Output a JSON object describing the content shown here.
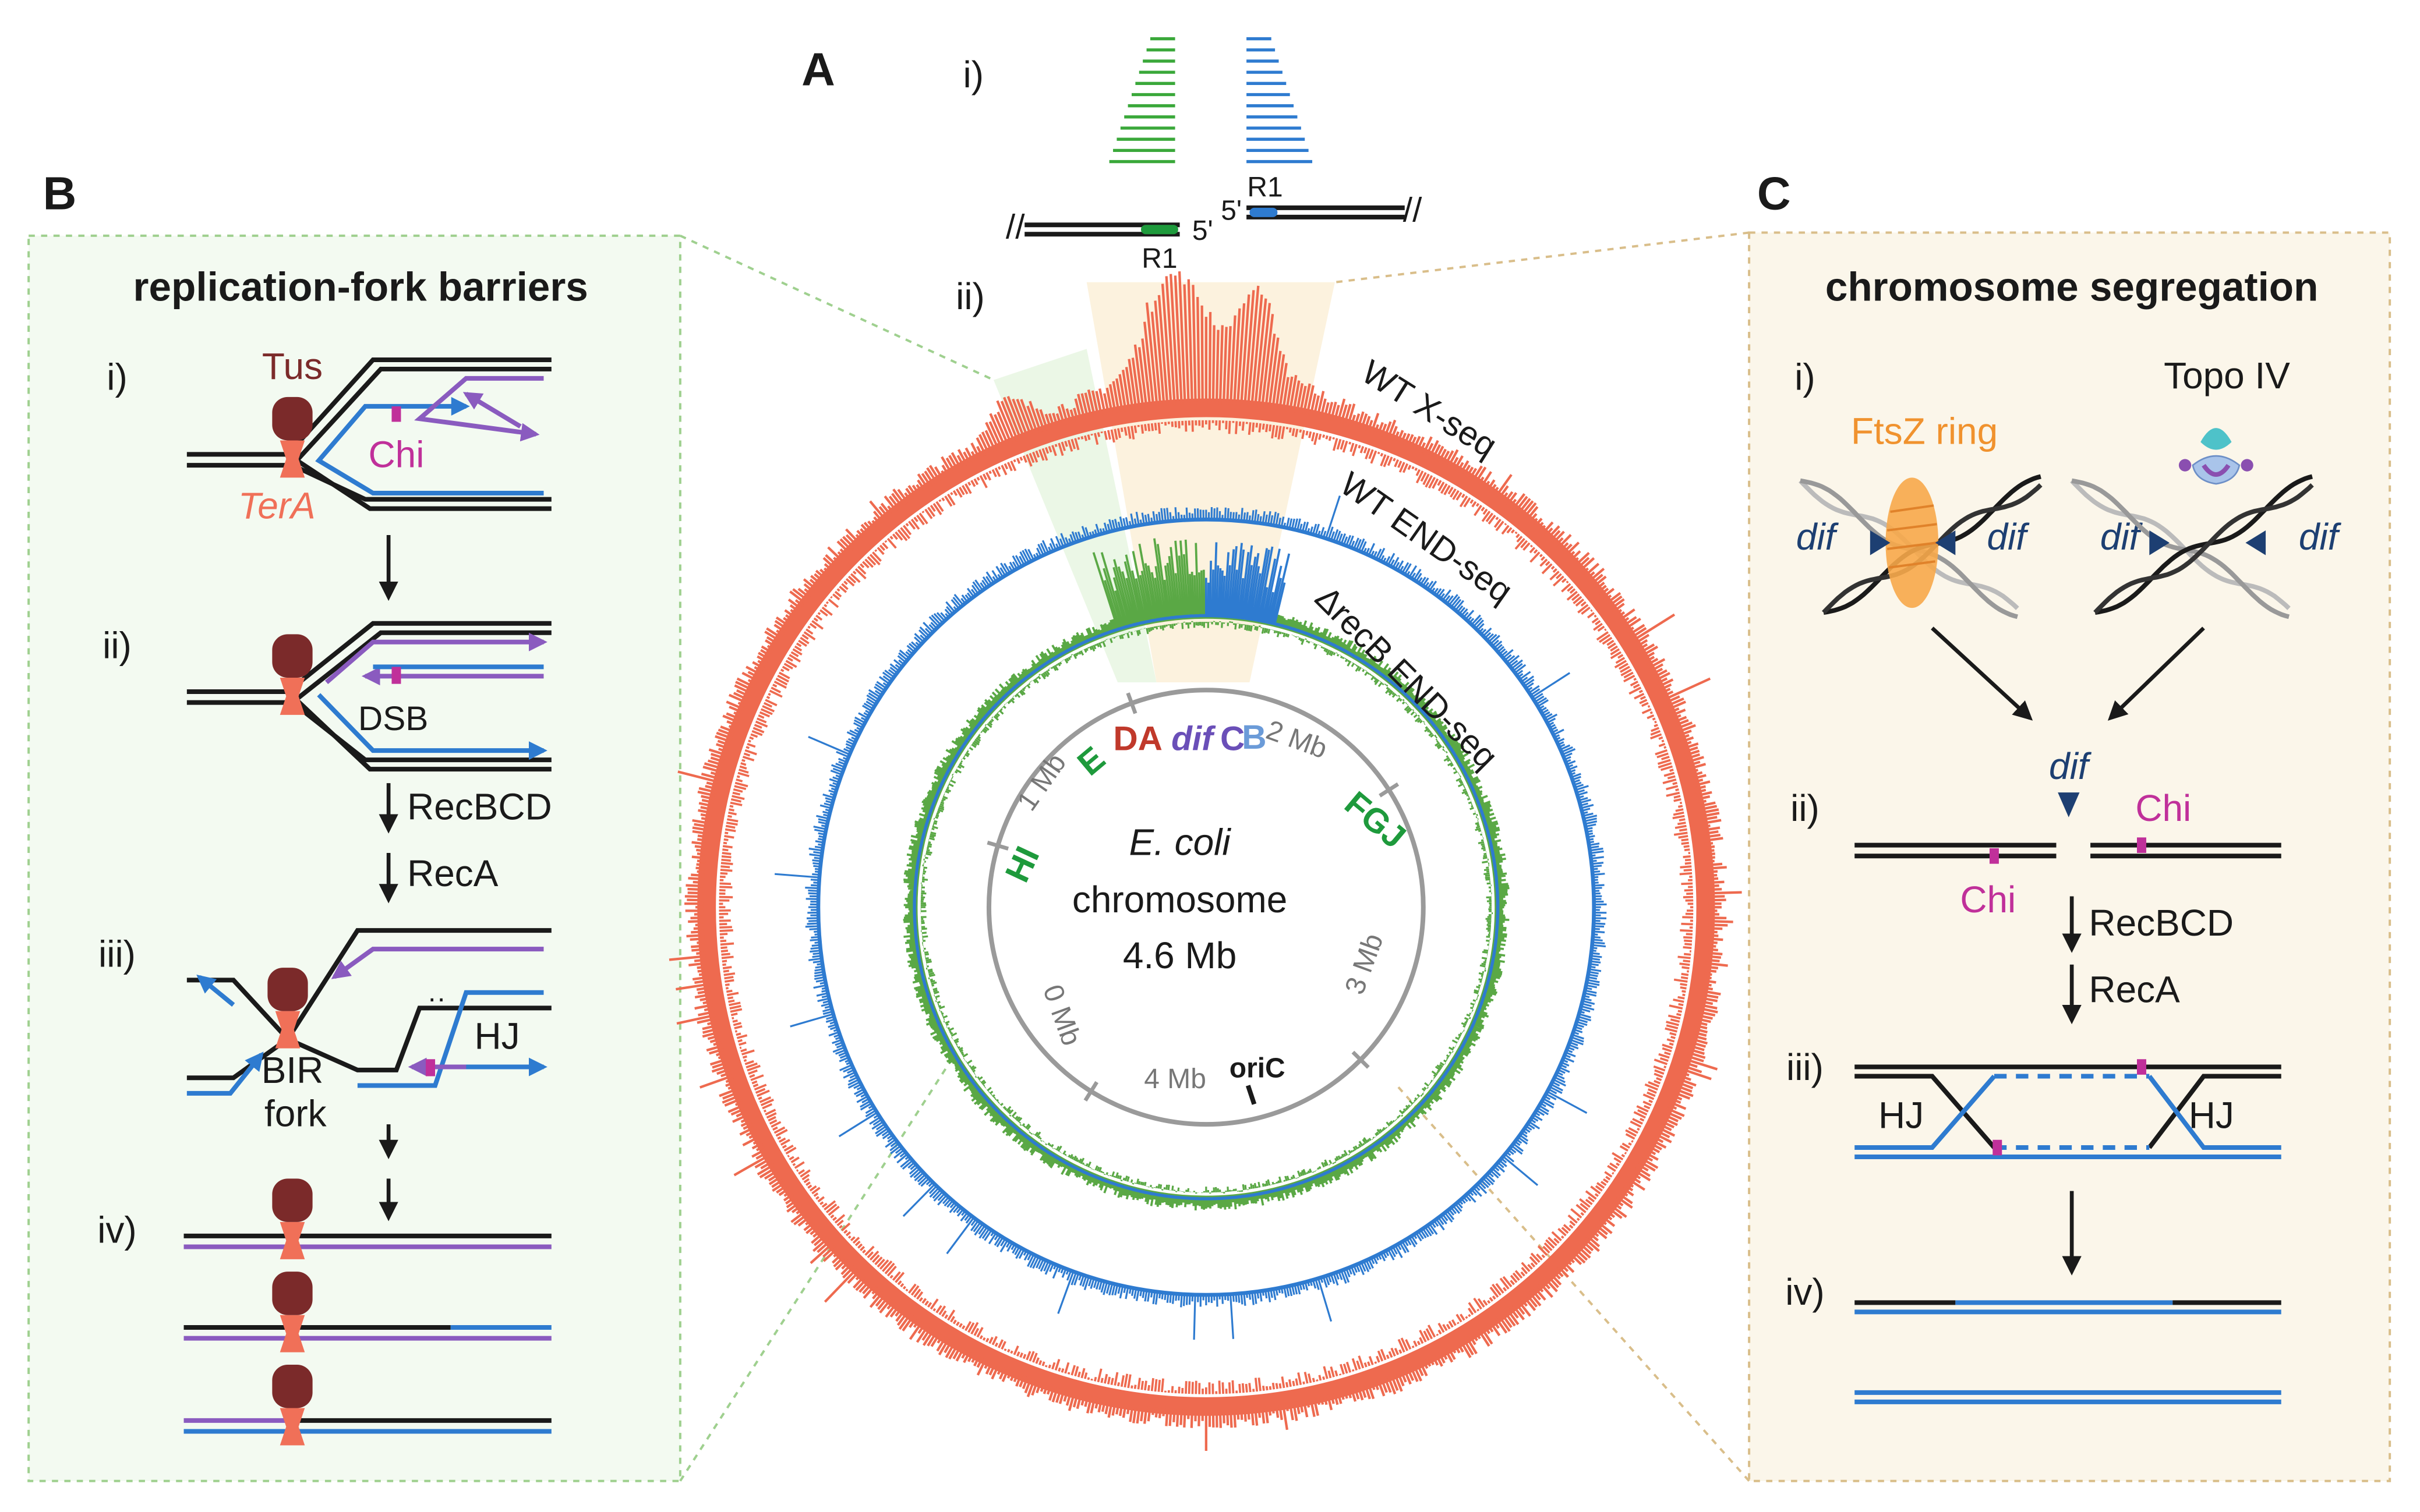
{
  "panel_a": {
    "label": "A",
    "reads": {
      "label": "i)",
      "left_end": "5'",
      "left_primer": "R1",
      "right_end": "5'",
      "right_primer": "R1"
    },
    "map": {
      "label": "ii)",
      "tracks": [
        "WT X-seq",
        "WT END-seq",
        "ΔrecB END-seq"
      ],
      "center": [
        "E. coli",
        "chromosome",
        "4.6 Mb"
      ],
      "positions": [
        "0 Mb",
        "1 Mb",
        "2 Mb",
        "3 Mb",
        "4 Mb"
      ],
      "origin": "oriC",
      "sites": [
        "HI",
        "E",
        "DA",
        "dif",
        "C",
        "B",
        "FGJ"
      ]
    }
  },
  "panel_b": {
    "label": "B",
    "title": "replication-fork barriers",
    "steps": [
      "i)",
      "ii)",
      "iii)",
      "iv)"
    ],
    "protein": "Tus",
    "chi": "Chi",
    "site": "TerA",
    "break": "DSB",
    "enzymes": [
      "RecBCD",
      "RecA"
    ],
    "junction": "HJ",
    "fork": [
      "BIR",
      "fork"
    ]
  },
  "panel_c": {
    "label": "C",
    "title": "chromosome segregation",
    "steps": [
      "i)",
      "ii)",
      "iii)",
      "iv)"
    ],
    "ring": "FtsZ ring",
    "topo": "Topo IV",
    "dif": "dif",
    "chi": "Chi",
    "enzymes": [
      "RecBCD",
      "RecA"
    ],
    "junction": "HJ"
  }
}
